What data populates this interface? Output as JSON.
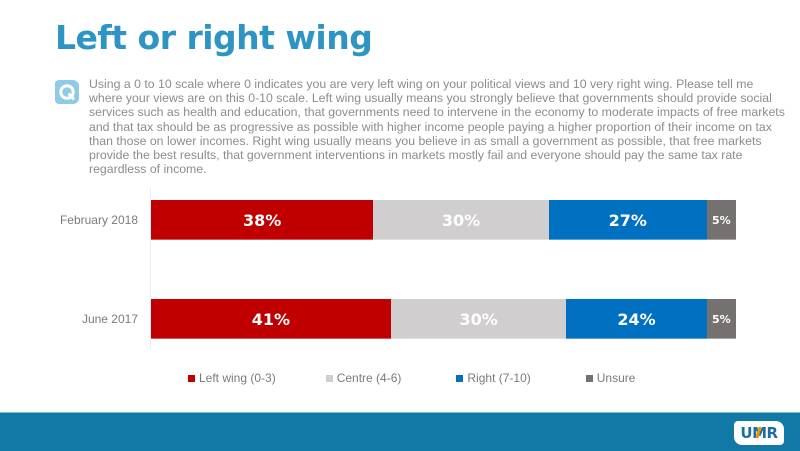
{
  "title": "Left or right wing",
  "question": {
    "icon": "question-q-icon",
    "text": "Using a 0 to 10 scale where 0 indicates you are very left wing on your political views and 10 very right wing. Please tell me where your views are on this 0-10 scale. Left wing usually means you strongly believe that governments should provide social services such as health and education, that governments need to intervene in the economy to moderate impacts of free markets and that tax should be as progressive as possible with higher income people paying a higher proportion of their income on tax than those on lower incomes. Right wing usually means you believe in as small a government as possible, that free markets provide the best results, that government interventions in markets mostly fail and everyone should pay the same tax rate regardless of income."
  },
  "chart_data": {
    "type": "bar",
    "orientation": "horizontal",
    "stacked": true,
    "percent": true,
    "title": "",
    "xlabel": "",
    "ylabel": "",
    "xlim": [
      0,
      100
    ],
    "grid": false,
    "legend_position": "bottom",
    "categories": [
      "February 2018",
      "June 2017"
    ],
    "series": [
      {
        "name": "Left wing (0-3)",
        "color": "#c00000",
        "values": [
          38,
          41
        ],
        "labels": [
          "38%",
          "41%"
        ]
      },
      {
        "name": "Centre (4-6)",
        "color": "#d0cece",
        "values": [
          30,
          30
        ],
        "labels": [
          "30%",
          "30%"
        ]
      },
      {
        "name": "Right (7-10)",
        "color": "#0070c0",
        "values": [
          27,
          24
        ],
        "labels": [
          "27%",
          "24%"
        ]
      },
      {
        "name": "Unsure",
        "color": "#767171",
        "values": [
          5,
          5
        ],
        "labels": [
          "5%",
          "5%"
        ]
      }
    ]
  },
  "footer": {
    "logo_text": "UMR",
    "brand_color": "#1278a6"
  }
}
